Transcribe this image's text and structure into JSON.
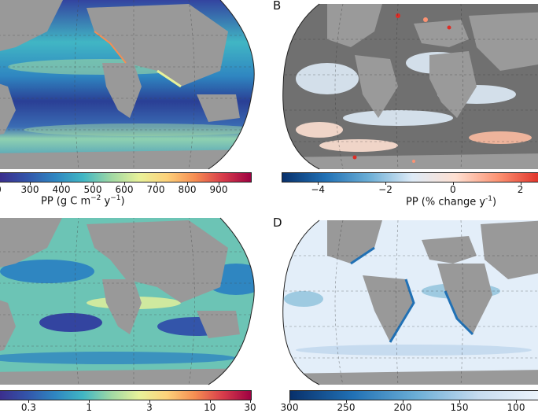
{
  "panels": {
    "a": {
      "letter": "",
      "cbar_ticks": [
        "0",
        "300",
        "400",
        "500",
        "600",
        "700",
        "800",
        "900"
      ],
      "cbar_label_pre": "PP (g C m",
      "cbar_sup1": "−2",
      "cbar_mid": " y",
      "cbar_sup2": "−1",
      "cbar_post": ")",
      "colormap": [
        "#3b2d8c",
        "#3355aa",
        "#2f86c1",
        "#41b6c4",
        "#9fd8a4",
        "#e8f29a",
        "#fdd17a",
        "#f68d52",
        "#d73c4b",
        "#9e0142"
      ]
    },
    "b": {
      "letter": "B",
      "cbar_ticks": [
        "−4",
        "−2",
        "0",
        "2"
      ],
      "cbar_label_pre": "PP (% change y",
      "cbar_sup": "-1",
      "cbar_post": ")",
      "colormap": [
        "#08306b",
        "#2171b5",
        "#6baed6",
        "#deebf7",
        "#fee0d2",
        "#fc9272",
        "#de2d26"
      ]
    },
    "c": {
      "letter": "",
      "cbar_ticks": [
        "0.3",
        "1",
        "3",
        "10",
        "30"
      ],
      "colormap": [
        "#3b2d8c",
        "#3355aa",
        "#2f86c1",
        "#41b6c4",
        "#9fd8a4",
        "#e8f29a",
        "#fdd17a",
        "#f68d52",
        "#d73c4b",
        "#9e0142"
      ]
    },
    "d": {
      "letter": "D",
      "cbar_ticks": [
        "300",
        "250",
        "200",
        "150",
        "100"
      ],
      "colormap": [
        "#08306b",
        "#2171b5",
        "#6baed6",
        "#c6dbef",
        "#eef5fc"
      ]
    }
  },
  "colors": {
    "land": "#999999",
    "land_dark": "#6e6e6e",
    "ocean_a": "#2f6fb0",
    "ocean_c": "#5cbcb8",
    "ocean_d": "#e6f0fa",
    "ice": "#f4f4f4"
  }
}
